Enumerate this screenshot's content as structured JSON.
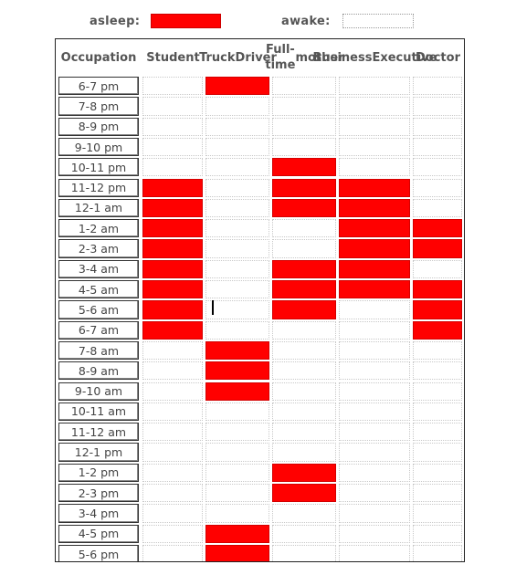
{
  "legend": {
    "asleep_label": "asleep:",
    "awake_label": "awake:",
    "asleep_color": "#ff0000",
    "awake_color": "#ffffff"
  },
  "chart_data": {
    "type": "heatmap",
    "row_header": "Occupation",
    "columns": [
      [
        "Student"
      ],
      [
        "Truck",
        "Driver"
      ],
      [
        "Full-time",
        "mother"
      ],
      [
        "Business",
        "Executive"
      ],
      [
        "Doctor"
      ]
    ],
    "rows": [
      "6-7 pm",
      "7-8 pm",
      "8-9 pm",
      "9-10 pm",
      "10-11 pm",
      "11-12 pm",
      "12-1 am",
      "1-2 am",
      "2-3 am",
      "3-4 am",
      "4-5 am",
      "5-6 am",
      "6-7 am",
      "7-8 am",
      "8-9 am",
      "9-10 am",
      "10-11 am",
      "11-12 am",
      "12-1 pm",
      "1-2 pm",
      "2-3 pm",
      "3-4 pm",
      "4-5 pm",
      "5-6 pm"
    ],
    "asleep": [
      [
        0,
        1,
        0,
        0,
        0
      ],
      [
        0,
        0,
        0,
        0,
        0
      ],
      [
        0,
        0,
        0,
        0,
        0
      ],
      [
        0,
        0,
        0,
        0,
        0
      ],
      [
        0,
        0,
        1,
        0,
        0
      ],
      [
        1,
        0,
        1,
        1,
        0
      ],
      [
        1,
        0,
        1,
        1,
        0
      ],
      [
        1,
        0,
        0,
        1,
        1
      ],
      [
        1,
        0,
        0,
        1,
        1
      ],
      [
        1,
        0,
        1,
        1,
        0
      ],
      [
        1,
        0,
        1,
        1,
        1
      ],
      [
        1,
        0,
        1,
        0,
        1
      ],
      [
        1,
        0,
        0,
        0,
        1
      ],
      [
        0,
        1,
        0,
        0,
        0
      ],
      [
        0,
        1,
        0,
        0,
        0
      ],
      [
        0,
        1,
        0,
        0,
        0
      ],
      [
        0,
        0,
        0,
        0,
        0
      ],
      [
        0,
        0,
        0,
        0,
        0
      ],
      [
        0,
        0,
        0,
        0,
        0
      ],
      [
        0,
        0,
        1,
        0,
        0
      ],
      [
        0,
        0,
        1,
        0,
        0
      ],
      [
        0,
        0,
        0,
        0,
        0
      ],
      [
        0,
        1,
        0,
        0,
        0
      ],
      [
        0,
        1,
        0,
        0,
        0
      ]
    ]
  }
}
